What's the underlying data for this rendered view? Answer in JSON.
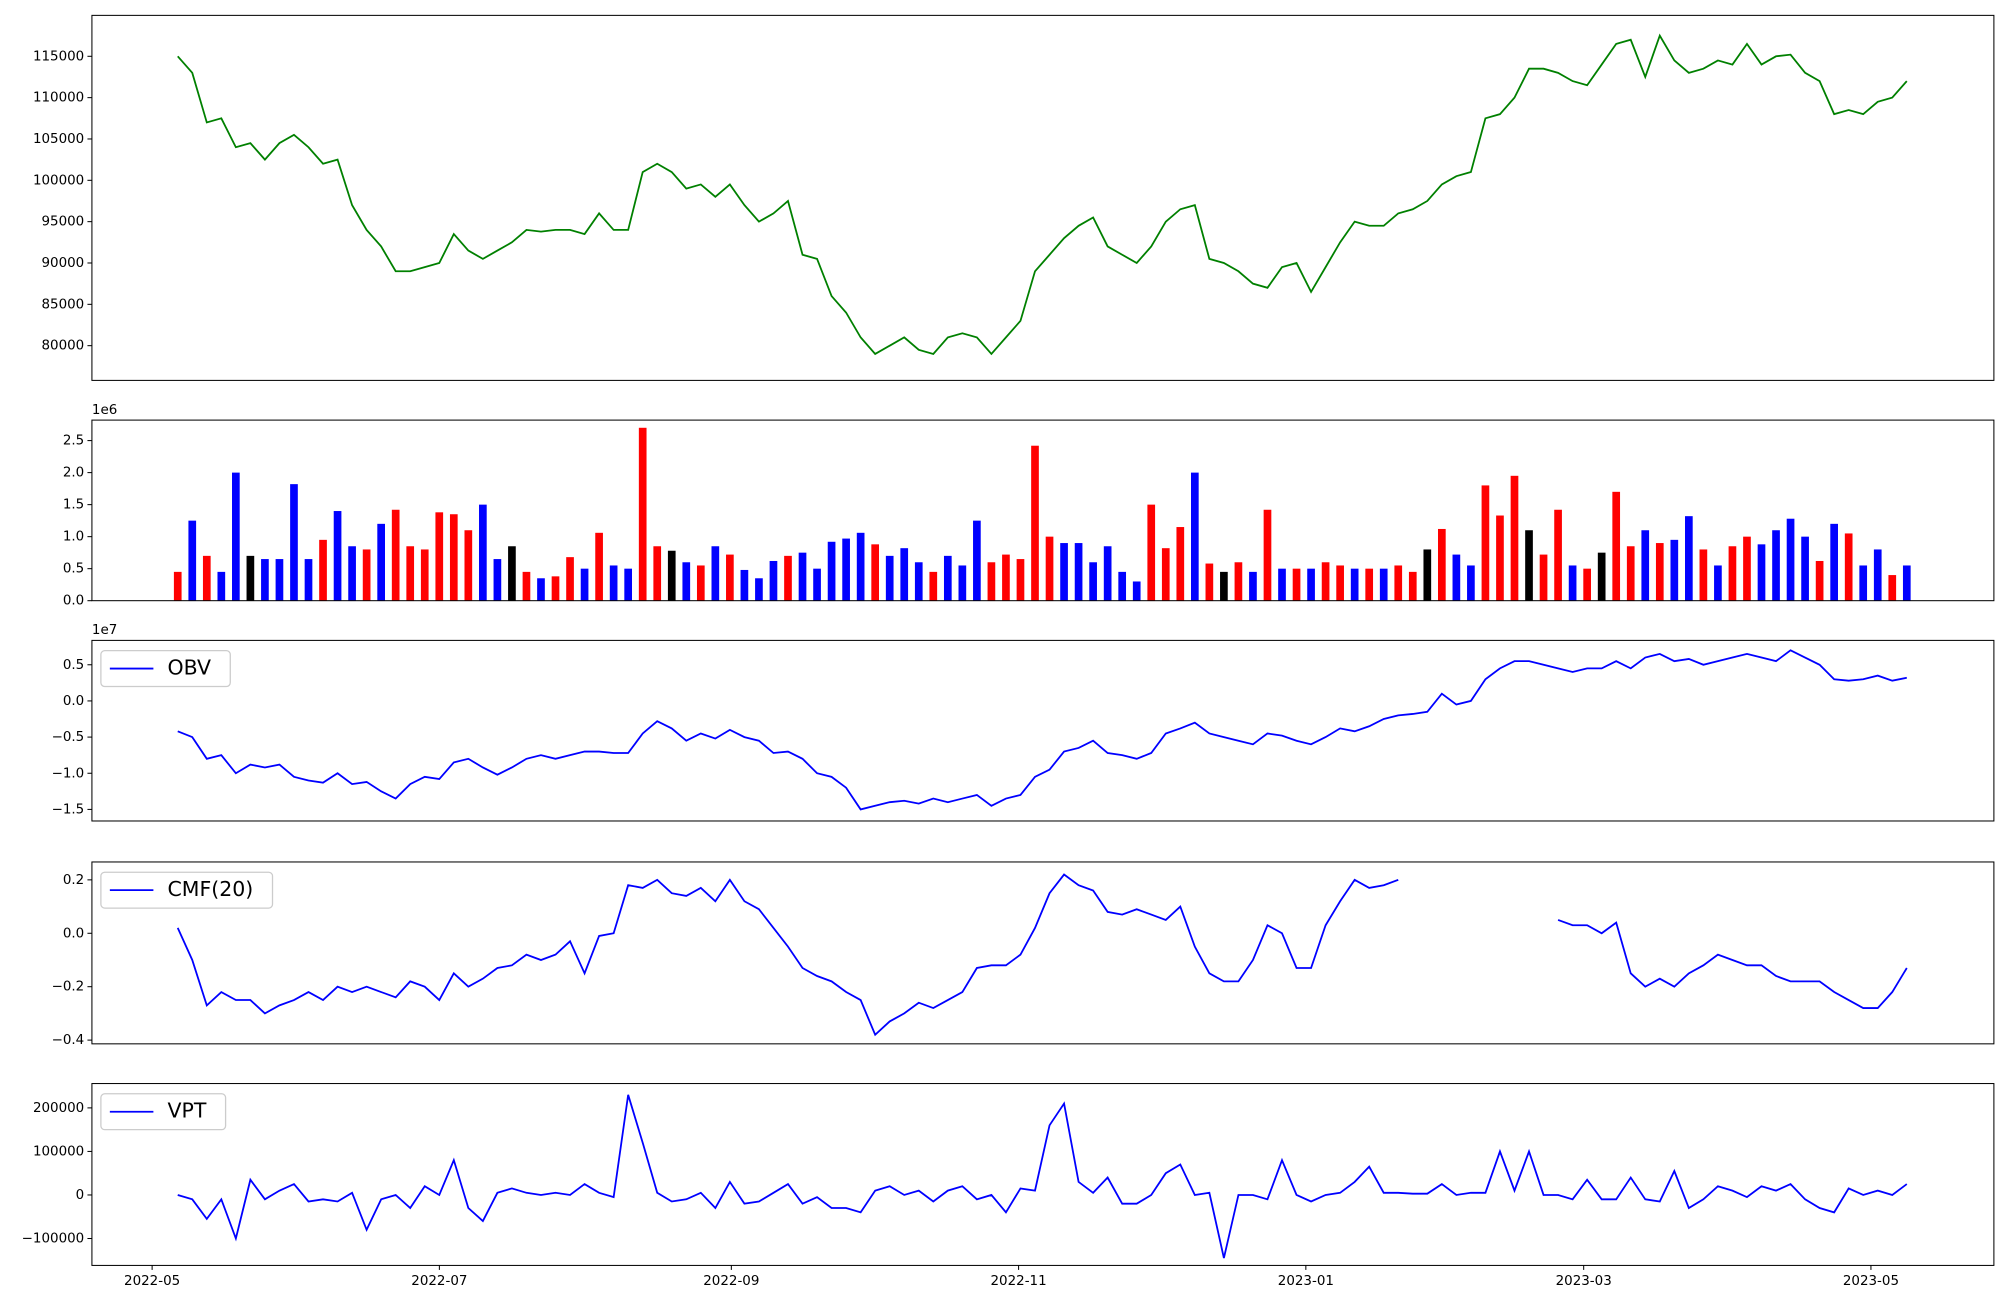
{
  "chart_data": [
    {
      "type": "line",
      "color": "#008000",
      "values": [
        115000,
        113000,
        107000,
        107500,
        104000,
        104500,
        102500,
        104500,
        105500,
        104000,
        102000,
        102500,
        97000,
        94000,
        92000,
        89000,
        89000,
        89500,
        90000,
        93500,
        91500,
        90500,
        91500,
        92500,
        94000,
        93800,
        94000,
        94000,
        93500,
        96000,
        94000,
        94000,
        101000,
        102000,
        101000,
        99000,
        99500,
        98000,
        99500,
        97000,
        95000,
        96000,
        97500,
        91000,
        90500,
        86000,
        84000,
        81000,
        79000,
        80000,
        81000,
        79500,
        79000,
        81000,
        81500,
        81000,
        79000,
        81000,
        83000,
        89000,
        91000,
        93000,
        94500,
        95500,
        92000,
        91000,
        90000,
        92000,
        95000,
        96500,
        97000,
        90500,
        90000,
        89000,
        87500,
        87000,
        89500,
        90000,
        86500,
        89500,
        92500,
        95000,
        94500,
        94500,
        96000,
        96500,
        97500,
        99500,
        100500,
        101000,
        107500,
        108000,
        110000,
        113500,
        113500,
        113000,
        112000,
        111500,
        114000,
        116500,
        117000,
        112500,
        117500,
        114500,
        113000,
        113500,
        114500,
        114000,
        116500,
        114000,
        115000,
        115200,
        113000,
        112000,
        108000,
        108500,
        108000,
        109500,
        110000,
        112000
      ],
      "ylim": [
        75800,
        119950
      ],
      "yticks": [
        80000,
        85000,
        90000,
        95000,
        100000,
        105000,
        110000,
        115000
      ]
    },
    {
      "type": "bar",
      "y_offset_label": "1e6",
      "values": [
        0.45,
        1.25,
        0.7,
        0.45,
        2.0,
        0.7,
        0.65,
        0.65,
        1.82,
        0.65,
        0.95,
        1.4,
        0.85,
        0.8,
        1.2,
        1.42,
        0.85,
        0.8,
        1.38,
        1.35,
        1.1,
        1.5,
        0.65,
        0.85,
        0.45,
        0.35,
        0.38,
        0.68,
        0.5,
        1.06,
        0.55,
        0.5,
        2.7,
        0.85,
        0.78,
        0.6,
        0.55,
        0.85,
        0.72,
        0.48,
        0.35,
        0.62,
        0.7,
        0.75,
        0.5,
        0.92,
        0.97,
        1.06,
        0.88,
        0.7,
        0.82,
        0.6,
        0.45,
        0.7,
        0.55,
        1.25,
        0.6,
        0.72,
        0.65,
        2.42,
        1.0,
        0.9,
        0.9,
        0.6,
        0.85,
        0.45,
        0.3,
        1.5,
        0.82,
        1.15,
        2.0,
        0.58,
        0.45,
        0.6,
        0.45,
        1.42,
        0.5,
        0.5,
        0.5,
        0.6,
        0.55,
        0.5,
        0.5,
        0.5,
        0.55,
        0.45,
        0.8,
        1.12,
        0.72,
        0.55,
        1.8,
        1.33,
        1.95,
        1.1,
        0.72,
        1.42,
        0.55,
        0.5,
        0.75,
        1.7,
        0.85,
        1.1,
        0.9,
        0.95,
        1.32,
        0.8,
        0.55,
        0.85,
        1.0,
        0.88,
        1.1,
        1.28,
        1.0,
        0.62,
        1.2,
        1.05,
        0.55,
        0.8,
        0.4,
        0.55
      ],
      "colors": [
        "red",
        "blue",
        "red",
        "blue",
        "blue",
        "black",
        "blue",
        "blue",
        "blue",
        "blue",
        "red",
        "blue",
        "blue",
        "red",
        "blue",
        "red",
        "red",
        "red",
        "red",
        "red",
        "red",
        "blue",
        "blue",
        "black",
        "red",
        "blue",
        "red",
        "red",
        "blue",
        "red",
        "blue",
        "blue",
        "red",
        "red",
        "black",
        "blue",
        "red",
        "blue",
        "red",
        "blue",
        "blue",
        "blue",
        "red",
        "blue",
        "blue",
        "blue",
        "blue",
        "blue",
        "red",
        "blue",
        "blue",
        "blue",
        "red",
        "blue",
        "blue",
        "blue",
        "red",
        "red",
        "red",
        "red",
        "red",
        "blue",
        "blue",
        "blue",
        "blue",
        "blue",
        "blue",
        "red",
        "red",
        "red",
        "blue",
        "red",
        "black",
        "red",
        "blue",
        "red",
        "blue",
        "red",
        "blue",
        "red",
        "red",
        "blue",
        "red",
        "blue",
        "red",
        "red",
        "black",
        "red",
        "blue",
        "blue",
        "red",
        "red",
        "red",
        "black",
        "red",
        "red",
        "blue",
        "red",
        "black",
        "red",
        "red",
        "blue",
        "red",
        "blue",
        "blue",
        "red",
        "blue",
        "red",
        "red",
        "blue",
        "blue",
        "blue",
        "blue",
        "red",
        "blue",
        "red",
        "blue",
        "blue",
        "red",
        "blue"
      ],
      "ylim": [
        0,
        2.82
      ],
      "yticks": [
        {
          "value": 0,
          "label": "0.0"
        },
        0.5,
        {
          "value": 1,
          "label": "1.0"
        },
        1.5,
        {
          "value": 2,
          "label": "2.0"
        },
        2.5
      ]
    },
    {
      "type": "line",
      "y_offset_label": "1e7",
      "legend": "upper left",
      "series": [
        {
          "name": "OBV",
          "color": "#0000ff",
          "values": [
            -0.42,
            -0.5,
            -0.8,
            -0.75,
            -1.0,
            -0.88,
            -0.92,
            -0.88,
            -1.05,
            -1.1,
            -1.13,
            -1.0,
            -1.15,
            -1.12,
            -1.25,
            -1.35,
            -1.15,
            -1.05,
            -1.08,
            -0.85,
            -0.8,
            -0.92,
            -1.02,
            -0.92,
            -0.8,
            -0.75,
            -0.8,
            -0.75,
            -0.7,
            -0.7,
            -0.72,
            -0.72,
            -0.45,
            -0.28,
            -0.38,
            -0.55,
            -0.45,
            -0.52,
            -0.4,
            -0.5,
            -0.55,
            -0.72,
            -0.7,
            -0.8,
            -1.0,
            -1.05,
            -1.2,
            -1.5,
            -1.45,
            -1.4,
            -1.38,
            -1.42,
            -1.35,
            -1.4,
            -1.35,
            -1.3,
            -1.45,
            -1.35,
            -1.3,
            -1.05,
            -0.95,
            -0.7,
            -0.65,
            -0.55,
            -0.72,
            -0.75,
            -0.8,
            -0.72,
            -0.45,
            -0.38,
            -0.3,
            -0.45,
            -0.5,
            -0.55,
            -0.6,
            -0.45,
            -0.48,
            -0.55,
            -0.6,
            -0.5,
            -0.38,
            -0.42,
            -0.35,
            -0.25,
            -0.2,
            -0.18,
            -0.15,
            0.1,
            -0.05,
            0.0,
            0.3,
            0.45,
            0.55,
            0.55,
            0.5,
            0.45,
            0.4,
            0.45,
            0.45,
            0.55,
            0.45,
            0.6,
            0.65,
            0.55,
            0.58,
            0.5,
            0.55,
            0.6,
            0.65,
            0.6,
            0.55,
            0.7,
            0.6,
            0.5,
            0.3,
            0.28,
            0.3,
            0.35,
            0.28,
            0.32
          ]
        }
      ],
      "ylim": [
        -1.66,
        0.837
      ],
      "yticks": [
        {
          "value": -1.5,
          "label": "−1.5"
        },
        {
          "value": -1,
          "label": "−1.0"
        },
        {
          "value": -0.5,
          "label": "−0.5"
        },
        {
          "value": 0,
          "label": "0.0"
        },
        0.5
      ]
    },
    {
      "type": "line",
      "legend": "upper left",
      "series": [
        {
          "name": "CMF(20)",
          "color": "#0000ff",
          "values": [
            0.02,
            -0.1,
            -0.27,
            -0.22,
            -0.25,
            -0.25,
            -0.3,
            -0.27,
            -0.25,
            -0.22,
            -0.25,
            -0.2,
            -0.22,
            -0.2,
            -0.22,
            -0.24,
            -0.18,
            -0.2,
            -0.25,
            -0.15,
            -0.2,
            -0.17,
            -0.13,
            -0.12,
            -0.08,
            -0.1,
            -0.08,
            -0.03,
            -0.15,
            -0.01,
            0.0,
            0.18,
            0.17,
            0.2,
            0.15,
            0.14,
            0.17,
            0.12,
            0.2,
            0.12,
            0.09,
            0.02,
            -0.05,
            -0.13,
            -0.16,
            -0.18,
            -0.22,
            -0.25,
            -0.38,
            -0.33,
            -0.3,
            -0.26,
            -0.28,
            -0.25,
            -0.22,
            -0.13,
            -0.12,
            -0.12,
            -0.08,
            0.02,
            0.15,
            0.22,
            0.18,
            0.16,
            0.08,
            0.07,
            0.09,
            0.07,
            0.05,
            0.1,
            -0.05,
            -0.15,
            -0.18,
            -0.18,
            -0.1,
            0.03,
            0.0,
            -0.13,
            -0.13,
            0.03,
            0.12,
            0.2,
            0.17,
            0.18,
            0.2,
            null,
            null,
            null,
            null,
            null,
            null,
            null,
            null,
            null,
            null,
            0.05,
            0.03,
            0.03,
            0.0,
            0.04,
            -0.15,
            -0.2,
            -0.17,
            -0.2,
            -0.15,
            -0.12,
            -0.08,
            -0.1,
            -0.12,
            -0.12,
            -0.16,
            -0.18,
            -0.18,
            -0.18,
            -0.22,
            -0.25,
            -0.28,
            -0.28,
            -0.22,
            -0.13
          ]
        }
      ],
      "ylim": [
        -0.414,
        0.267
      ],
      "yticks": [
        {
          "value": -0.4,
          "label": "−0.4"
        },
        {
          "value": -0.2,
          "label": "−0.2"
        },
        {
          "value": 0,
          "label": "0.0"
        },
        0.2
      ]
    },
    {
      "type": "line",
      "legend": "upper left",
      "series": [
        {
          "name": "VPT",
          "color": "#0000ff",
          "values": [
            0,
            -10000,
            -55000,
            -10000,
            -100000,
            35000,
            -10000,
            10000,
            25000,
            -15000,
            -10000,
            -15000,
            5000,
            -80000,
            -10000,
            0,
            -30000,
            20000,
            0,
            80000,
            -30000,
            -60000,
            5000,
            15000,
            5000,
            0,
            5000,
            0,
            25000,
            5000,
            -5000,
            230000,
            120000,
            5000,
            -15000,
            -10000,
            5000,
            -30000,
            30000,
            -20000,
            -15000,
            5000,
            25000,
            -20000,
            -5000,
            -30000,
            -30000,
            -40000,
            10000,
            20000,
            0,
            10000,
            -15000,
            10000,
            20000,
            -10000,
            0,
            -40000,
            15000,
            10000,
            160000,
            210000,
            30000,
            5000,
            40000,
            -20000,
            -20000,
            0,
            50000,
            70000,
            0,
            5000,
            -145000,
            0,
            0,
            -10000,
            80000,
            0,
            -15000,
            0,
            5000,
            30000,
            65000,
            5000,
            5000,
            3000,
            3000,
            25000,
            0,
            5000,
            5000,
            100000,
            10000,
            100000,
            0,
            0,
            -10000,
            35000,
            -10000,
            -10000,
            40000,
            -10000,
            -15000,
            55000,
            -30000,
            -10000,
            20000,
            10000,
            -5000,
            20000,
            10000,
            25000,
            -10000,
            -30000,
            -40000,
            15000,
            0,
            10000,
            0,
            25000
          ]
        }
      ],
      "ylim": [
        -161800,
        255900
      ],
      "yticks": [
        {
          "value": -100000,
          "label": "−100000"
        },
        0,
        100000,
        200000
      ],
      "xticks": [
        "2022-05",
        "2022-07",
        "2022-09",
        "2022-11",
        "2023-01",
        "2023-03",
        "2023-05"
      ]
    }
  ]
}
